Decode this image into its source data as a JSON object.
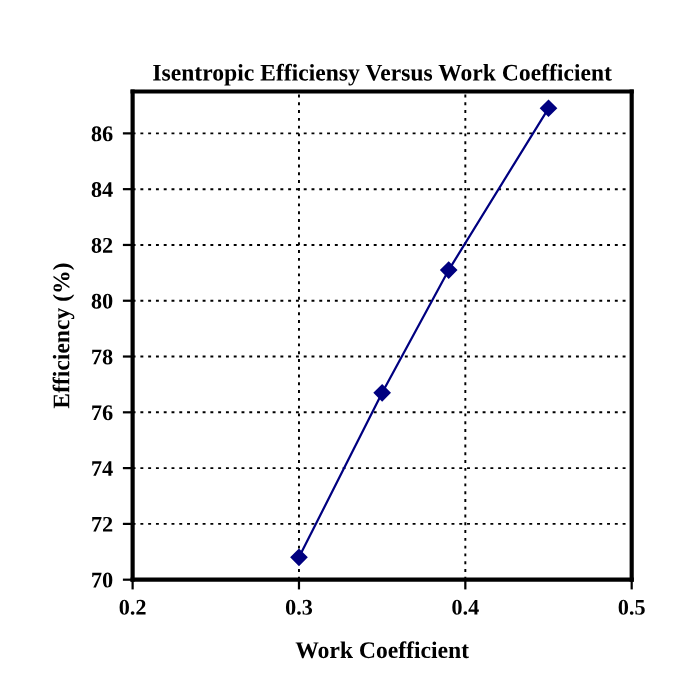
{
  "chart_data": {
    "type": "line",
    "title": "Isentropic Efficiensy Versus Work Coefficient",
    "xlabel": "Work Coefficient",
    "ylabel": "Efficiency (%)",
    "x": [
      0.3,
      0.35,
      0.39,
      0.45
    ],
    "series": [
      {
        "color": "#000080",
        "values": [
          70.8,
          76.7,
          81.1,
          86.9
        ]
      }
    ],
    "xlim": [
      0.2,
      0.5
    ],
    "xticks": [
      0.2,
      0.3,
      0.4,
      0.5
    ],
    "ylim": [
      70,
      87.5
    ],
    "yticks": [
      70,
      72,
      74,
      76,
      78,
      80,
      82,
      84,
      86
    ],
    "grid": true,
    "marker": "diamond",
    "line_style": "solid"
  }
}
